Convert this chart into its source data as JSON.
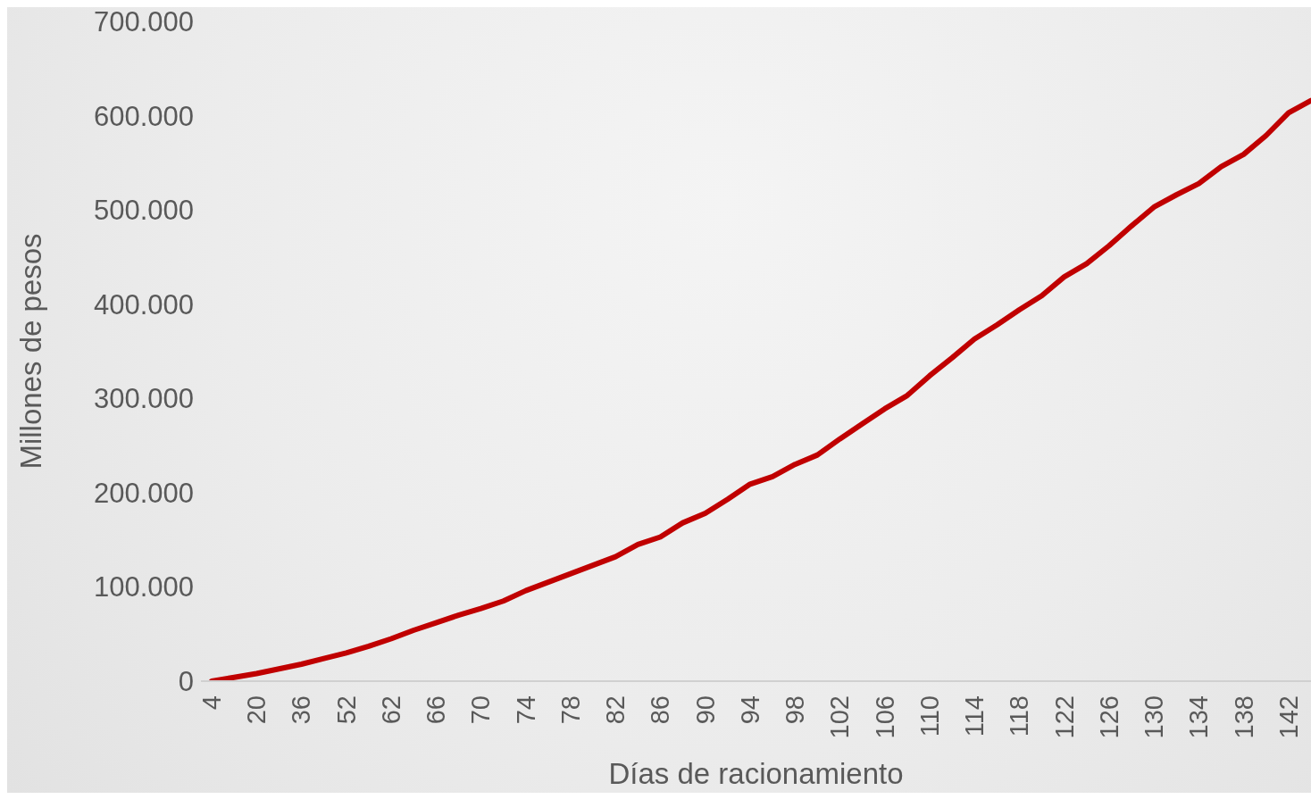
{
  "chart_data": {
    "type": "line",
    "xlabel": "Días de racionamiento",
    "ylabel": "Millones de pesos",
    "categories": [
      "4",
      null,
      "20",
      null,
      "36",
      null,
      "52",
      null,
      "62",
      null,
      "66",
      null,
      "70",
      null,
      "74",
      null,
      "78",
      null,
      "82",
      null,
      "86",
      null,
      "90",
      null,
      "94",
      null,
      "98",
      null,
      "102",
      null,
      "106",
      null,
      "110",
      null,
      "114",
      null,
      "118",
      null,
      "122",
      null,
      "126",
      null,
      "130",
      null,
      "134",
      null,
      "138",
      null,
      "142",
      null
    ],
    "series": [
      {
        "color": "#c00000",
        "values": [
          0,
          4000,
          8000,
          13000,
          18000,
          24000,
          30000,
          37000,
          45000,
          54000,
          62000,
          70000,
          77000,
          85000,
          96000,
          105000,
          114000,
          123000,
          132000,
          145000,
          153000,
          168000,
          178000,
          193000,
          209000,
          217000,
          230000,
          240000,
          257000,
          273000,
          289000,
          303000,
          324000,
          343000,
          363000,
          378000,
          394000,
          409000,
          429000,
          443000,
          462000,
          483000,
          503000,
          516000,
          528000,
          546000,
          559000,
          579000,
          603000,
          616000
        ]
      }
    ],
    "ylim": [
      0,
      700000
    ],
    "yticks": [
      {
        "value": 0,
        "label": "0"
      },
      {
        "value": 100000,
        "label": "100.000"
      },
      {
        "value": 200000,
        "label": "200.000"
      },
      {
        "value": 300000,
        "label": "300.000"
      },
      {
        "value": 400000,
        "label": "400.000"
      },
      {
        "value": 500000,
        "label": "500.000"
      },
      {
        "value": 600000,
        "label": "600.000"
      },
      {
        "value": 700000,
        "label": "700.000"
      }
    ],
    "grid": false,
    "legend": false,
    "marker": "none",
    "line_style": "solid"
  }
}
